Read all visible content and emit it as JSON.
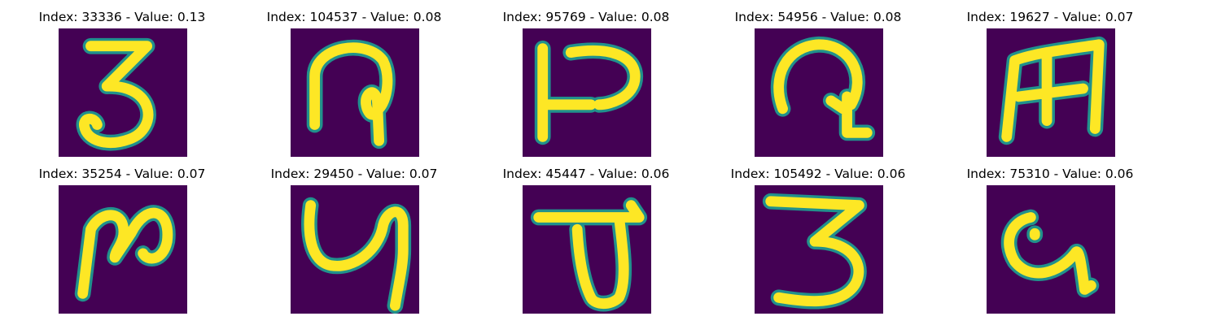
{
  "figure": {
    "panels": [
      {
        "index_label": "Index: 33336 - Value: 0.13",
        "glyph": "three-like"
      },
      {
        "index_label": "Index: 104537 - Value: 0.08",
        "glyph": "hook-loop"
      },
      {
        "index_label": "Index: 95769 - Value: 0.08",
        "glyph": "bracket-p"
      },
      {
        "index_label": "Index: 54956 - Value: 0.08",
        "glyph": "spiral-hook"
      },
      {
        "index_label": "Index: 19627 - Value: 0.07",
        "glyph": "m-like"
      },
      {
        "index_label": "Index: 35254 - Value: 0.07",
        "glyph": "n-loop"
      },
      {
        "index_label": "Index: 29450 - Value: 0.07",
        "glyph": "u-like"
      },
      {
        "index_label": "Index: 45447 - Value: 0.06",
        "glyph": "d-like"
      },
      {
        "index_label": "Index: 105492 - Value: 0.06",
        "glyph": "three-wide"
      },
      {
        "index_label": "Index: 75310 - Value: 0.06",
        "glyph": "blob-curl"
      }
    ],
    "colors": {
      "background": "#440154",
      "stroke": "#fde725",
      "edge": "#21918c"
    }
  }
}
